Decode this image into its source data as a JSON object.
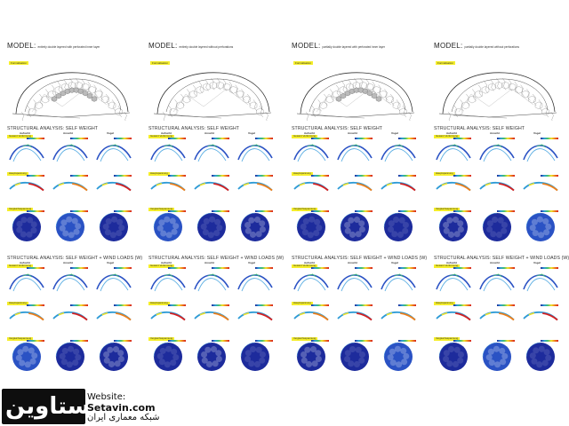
{
  "columns": [
    {
      "model_label": "MODEL:",
      "model_desc": "entirely double layered with perforated inner layer",
      "tag": "Formalisation"
    },
    {
      "model_label": "MODEL:",
      "model_desc": "entirely double layered without perforations",
      "tag": "Formalisation"
    },
    {
      "model_label": "MODEL:",
      "model_desc": "partially double layered with perforated inner layer",
      "tag": "Formalisation"
    },
    {
      "model_label": "MODEL:",
      "model_desc": "partially double layered without perforations",
      "tag": "Formalisation"
    }
  ],
  "section_titles": {
    "self_weight": "STRUCTURAL ANALYSIS: SELF WEIGHT",
    "wind": "STRUCTURAL ANALYSIS: SELF WEIGHT + WIND LOADS (W)"
  },
  "panel_headers": [
    "Aufsicht",
    "Ansicht",
    "Vogel"
  ],
  "row_tags": [
    "Gesamt Verformung",
    "Hauptspannung",
    "Vergleichsspannung"
  ],
  "footer": {
    "logo": "ستاوين",
    "website_label": "Website:",
    "website": "Setavin.com",
    "tagline": "شبکه معماری ایران"
  },
  "colors": {
    "accent": "#f5ee2a",
    "logo_bg": "#0e0e0e",
    "map_blue": "#1d2b9c"
  }
}
